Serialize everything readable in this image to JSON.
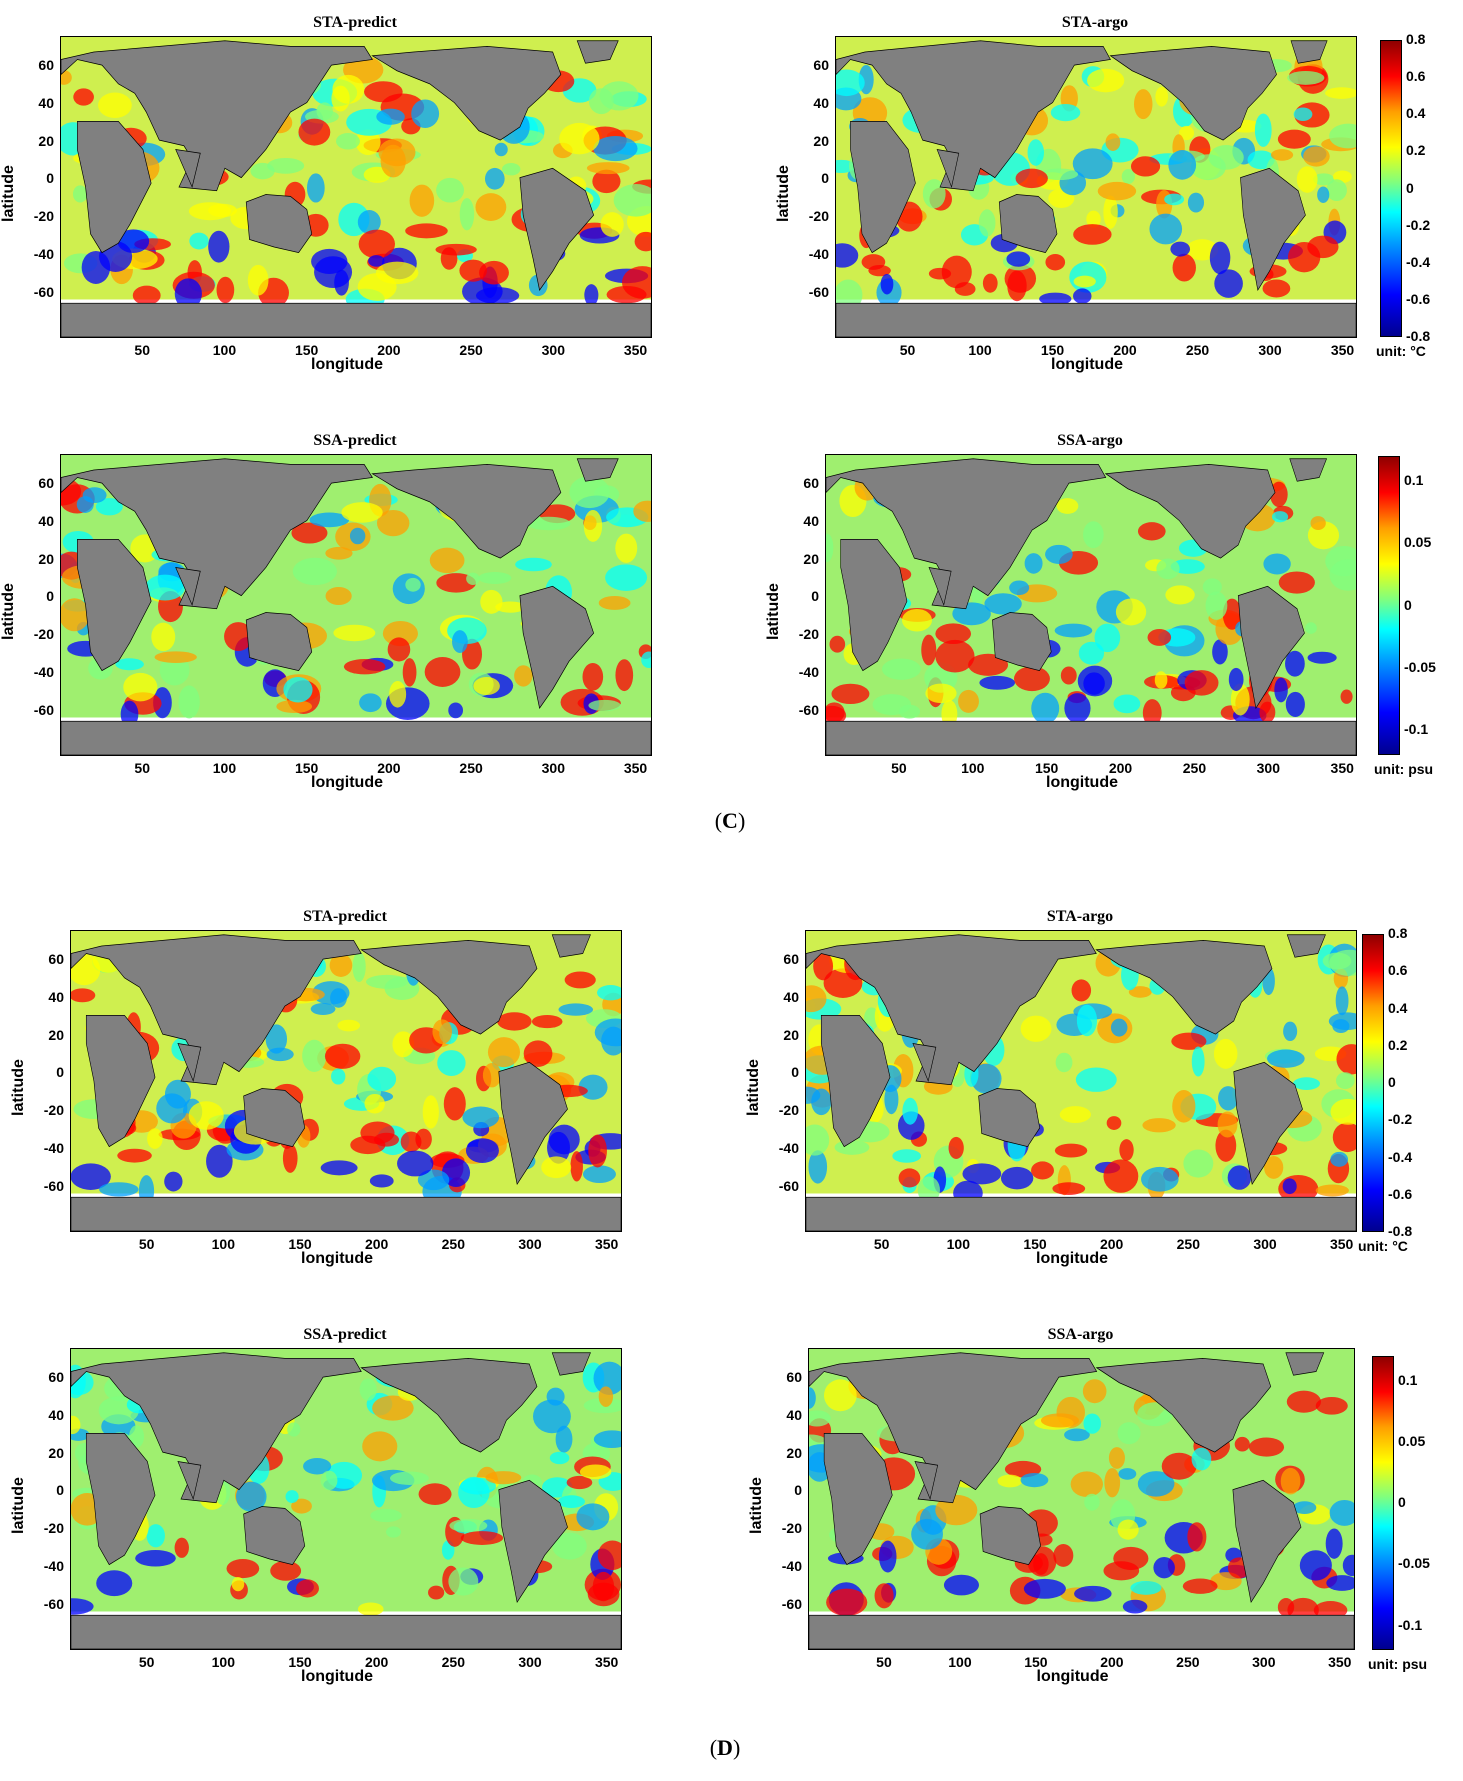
{
  "colors": {
    "land": "#808080",
    "ocean_colormap": [
      "#00008f",
      "#0000ff",
      "#00a0ff",
      "#00ffff",
      "#7fff7f",
      "#ffff00",
      "#ff9f00",
      "#ff0000",
      "#8f0000"
    ]
  },
  "axes": {
    "xlabel": "longitude",
    "ylabel": "latitude",
    "x_ticks": [
      "50",
      "100",
      "150",
      "200",
      "250",
      "300",
      "350"
    ],
    "y_ticks": [
      "60",
      "40",
      "20",
      "0",
      "-20",
      "-40",
      "-60"
    ]
  },
  "colorbars": {
    "sta": {
      "ticks": [
        "0.8",
        "0.6",
        "0.4",
        "0.2",
        "0",
        "-0.2",
        "-0.4",
        "-0.6",
        "-0.8"
      ],
      "unit": "unit: °C"
    },
    "ssa": {
      "ticks": [
        "0.1",
        "0.05",
        "0",
        "-0.05",
        "-0.1"
      ],
      "unit": "unit: psu"
    }
  },
  "figures": [
    {
      "label_open": "(",
      "label_letter": "C",
      "label_close": ")",
      "panels": [
        {
          "title": "STA-predict"
        },
        {
          "title": "STA-argo"
        },
        {
          "title": "SSA-predict"
        },
        {
          "title": "SSA-argo"
        }
      ]
    },
    {
      "label_open": "(",
      "label_letter": "D",
      "label_close": ")",
      "panels": [
        {
          "title": "STA-predict"
        },
        {
          "title": "STA-argo"
        },
        {
          "title": "SSA-predict"
        },
        {
          "title": "SSA-argo"
        }
      ]
    }
  ]
}
